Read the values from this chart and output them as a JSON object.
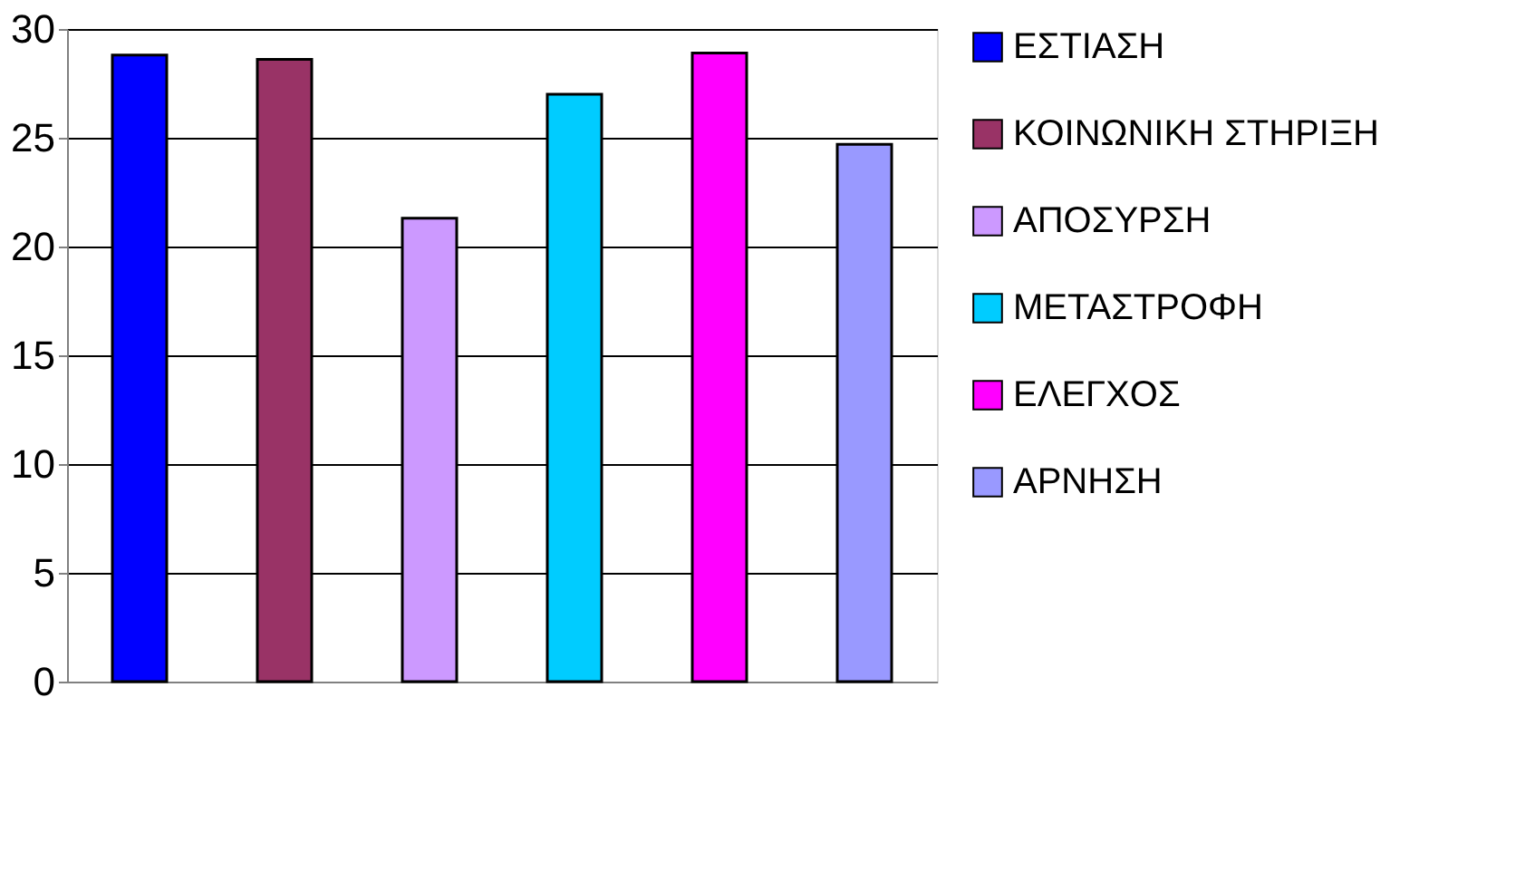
{
  "chart_data": {
    "type": "bar",
    "categories": [
      null,
      null,
      null,
      null,
      null,
      null
    ],
    "series": [
      {
        "name": "ΕΣΤΙΑΣΗ",
        "color": "#0000ff",
        "values": [
          28.8,
          null,
          null,
          null,
          null,
          null
        ]
      },
      {
        "name": "ΚΟΙΝΩΝΙΚΗ ΣΤΗΡΙΞΗ",
        "color": "#993366",
        "values": [
          null,
          28.6,
          null,
          null,
          null,
          null
        ]
      },
      {
        "name": "ΑΠΟΣΥΡΣΗ",
        "color": "#cc99ff",
        "values": [
          null,
          null,
          21.3,
          null,
          null,
          null
        ]
      },
      {
        "name": "ΜΕΤΑΣΤΡΟΦΗ",
        "color": "#00ccff",
        "values": [
          null,
          null,
          null,
          27.0,
          null,
          null
        ]
      },
      {
        "name": "ΕΛΕΓΧΟΣ",
        "color": "#ff00ff",
        "values": [
          null,
          null,
          null,
          null,
          28.9,
          null
        ]
      },
      {
        "name": "ΑΡΝΗΣΗ",
        "color": "#9999ff",
        "values": [
          null,
          null,
          null,
          null,
          null,
          24.7
        ]
      }
    ],
    "ylim": [
      0,
      30
    ],
    "yticks": [
      0,
      5,
      10,
      15,
      20,
      25,
      30
    ],
    "grid": "y",
    "legend": "right"
  }
}
